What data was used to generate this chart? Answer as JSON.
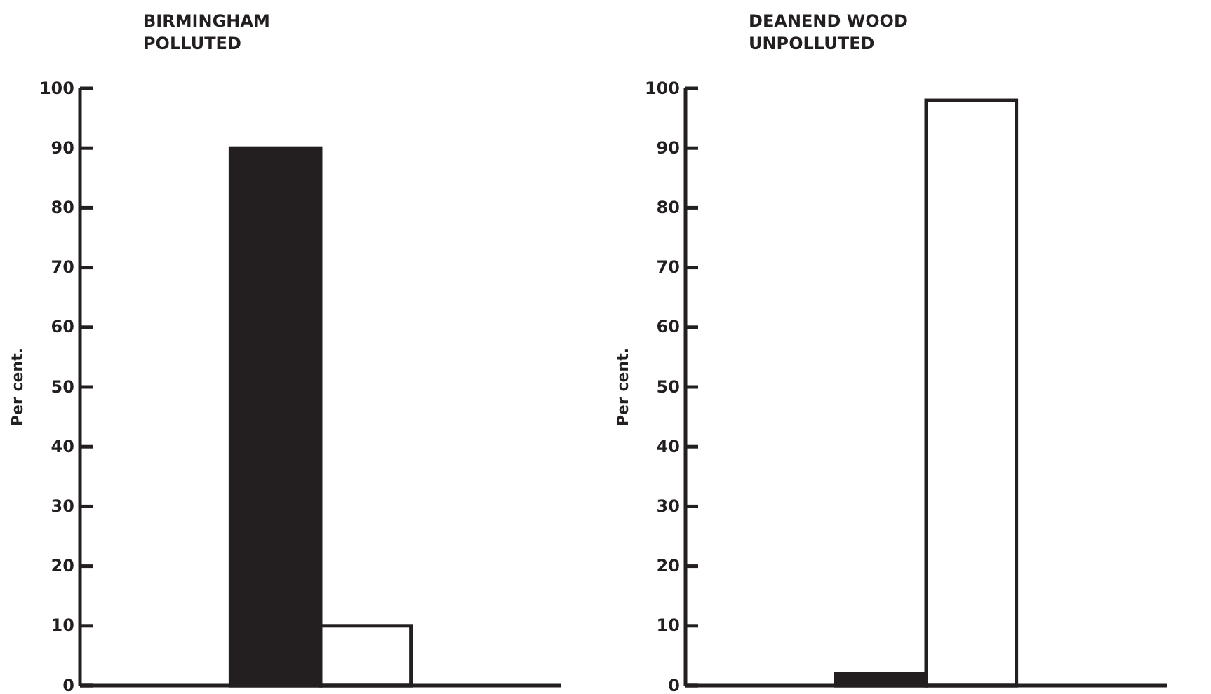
{
  "chart_data": [
    {
      "type": "bar",
      "title": "BIRMINGHAM\nPOLLUTED",
      "ylabel": "Per cent.",
      "categories": [
        null
      ],
      "ylim": [
        0,
        100
      ],
      "yticks": [
        0,
        10,
        20,
        30,
        40,
        50,
        60,
        70,
        80,
        90,
        100
      ],
      "grid": false,
      "legend": false,
      "series": [
        {
          "color": "#231f20",
          "values": [
            90
          ]
        },
        {
          "color": "#ffffff",
          "values": [
            10
          ]
        }
      ]
    },
    {
      "type": "bar",
      "title": "DEANEND WOOD\nUNPOLLUTED",
      "ylabel": "Per cent.",
      "categories": [
        null
      ],
      "ylim": [
        0,
        100
      ],
      "yticks": [
        0,
        10,
        20,
        30,
        40,
        50,
        60,
        70,
        80,
        90,
        100
      ],
      "grid": false,
      "legend": false,
      "series": [
        {
          "color": "#231f20",
          "values": [
            2
          ]
        },
        {
          "color": "#ffffff",
          "values": [
            98
          ]
        }
      ]
    }
  ]
}
